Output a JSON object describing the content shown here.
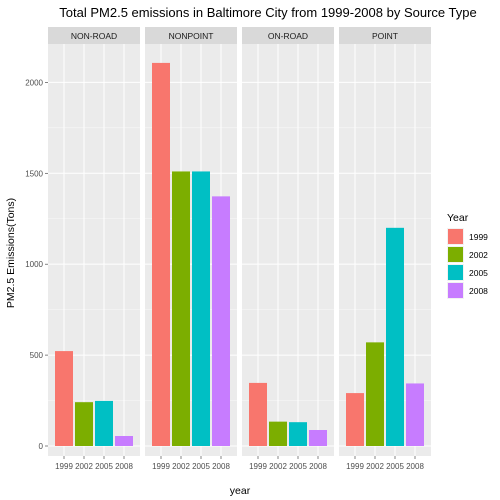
{
  "chart_data": {
    "type": "bar",
    "title": "Total PM2.5 emissions in Baltimore City  from 1999-2008 by Source Type",
    "xlabel": "year",
    "ylabel": "PM2.5 Emissions(Tons)",
    "ylim": [
      0,
      2200
    ],
    "yticks": [
      0,
      500,
      1000,
      1500,
      2000
    ],
    "categories": [
      "1999",
      "2002",
      "2005",
      "2008"
    ],
    "legend": {
      "title": "Year",
      "position": "right",
      "entries": [
        {
          "label": "1999",
          "color": "#F8766D"
        },
        {
          "label": "2002",
          "color": "#7CAE00"
        },
        {
          "label": "2005",
          "color": "#00BFC4"
        },
        {
          "label": "2008",
          "color": "#C77CFF"
        }
      ]
    },
    "grid": true,
    "facets": [
      {
        "name": "NON-ROAD",
        "values": [
          522,
          241,
          248,
          55
        ]
      },
      {
        "name": "NONPOINT",
        "values": [
          2107,
          1510,
          1510,
          1373
        ]
      },
      {
        "name": "ON-ROAD",
        "values": [
          347,
          134,
          131,
          88
        ]
      },
      {
        "name": "POINT",
        "values": [
          291,
          570,
          1200,
          344
        ]
      }
    ]
  }
}
